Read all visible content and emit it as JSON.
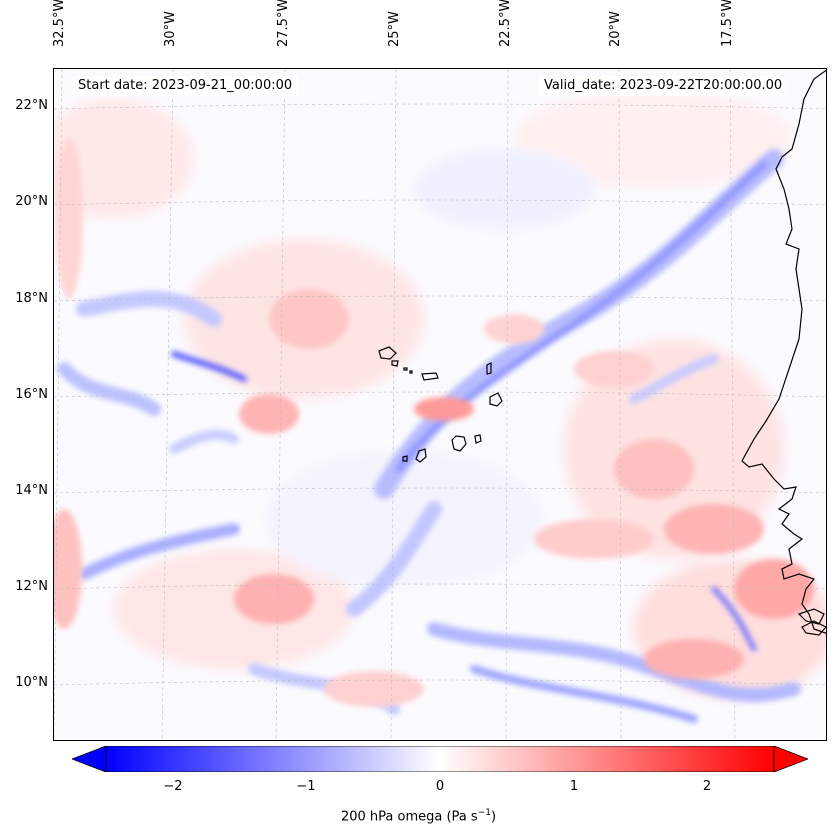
{
  "map": {
    "start_date": "Start date: 2023-09-21_00:00:00",
    "valid_date": "Valid_date: 2023-09-22T20:00:00.00",
    "lon_labels": [
      "32.5°W",
      "30°W",
      "27.5°W",
      "25°W",
      "22.5°W",
      "20°W",
      "17.5°W"
    ],
    "lat_labels": [
      "22°N",
      "20°N",
      "18°N",
      "16°N",
      "14°N",
      "12°N",
      "10°N"
    ],
    "colorbar": {
      "label_prefix": "200 hPa omega (Pa s",
      "label_exponent": "−1",
      "label_suffix": ")",
      "ticks": [
        "−2",
        "−1",
        "0",
        "1",
        "2"
      ],
      "min": -2.5,
      "max": 2.5,
      "colors": {
        "low": "#0000ff",
        "mid": "#ffffff",
        "high": "#ff0000"
      }
    }
  }
}
